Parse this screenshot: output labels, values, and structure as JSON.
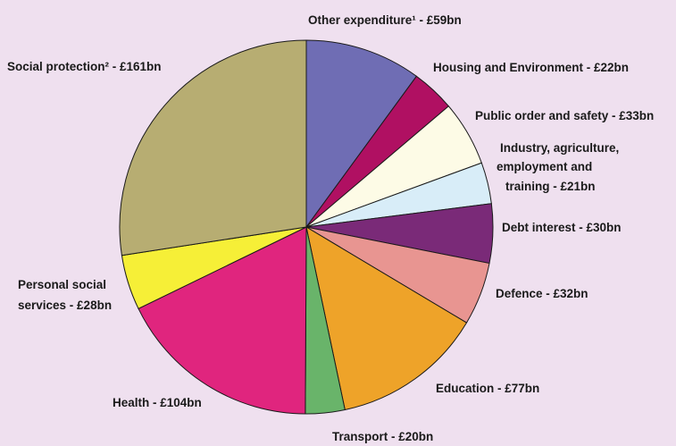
{
  "chart_data": {
    "type": "pie",
    "unit": "£bn",
    "start_angle_deg": 90,
    "direction": "clockwise",
    "slices": [
      {
        "label": "Other expenditure¹ - £59bn",
        "value": 59,
        "color": "#6f6db4"
      },
      {
        "label": "Housing and Environment - £22bn",
        "value": 22,
        "color": "#b01062"
      },
      {
        "label": "Public order and safety - £33bn",
        "value": 33,
        "color": "#fdfbe6"
      },
      {
        "label": "Industry, agriculture, employment and training - £21bn",
        "value": 21,
        "color": "#d8edf8"
      },
      {
        "label": "Debt interest - £30bn",
        "value": 30,
        "color": "#7a2a78"
      },
      {
        "label": "Defence - £32bn",
        "value": 32,
        "color": "#e89591"
      },
      {
        "label": "Education - £77bn",
        "value": 77,
        "color": "#eea329"
      },
      {
        "label": "Transport - £20bn",
        "value": 20,
        "color": "#69b46a"
      },
      {
        "label": "Health - £104bn",
        "value": 104,
        "color": "#e0257e"
      },
      {
        "label": "Personal social services - £28bn",
        "value": 28,
        "color": "#f6ef37"
      },
      {
        "label": "Social protection² - £161bn",
        "value": 161,
        "color": "#b7ad72"
      }
    ]
  },
  "labels": {
    "other": "Other expenditure¹ - £59bn",
    "housing": "Housing and Environment - £22bn",
    "public_order": "Public order and safety - £33bn",
    "industry_line1": "Industry, agriculture,",
    "industry_line2": "employment and",
    "industry_line3": "training - £21bn",
    "debt": "Debt interest - £30bn",
    "defence": "Defence - £32bn",
    "education": "Education - £77bn",
    "transport": "Transport - £20bn",
    "health": "Health - £104bn",
    "personal_line1": "Personal social",
    "personal_line2": "services - £28bn",
    "social": "Social protection² - £161bn"
  }
}
